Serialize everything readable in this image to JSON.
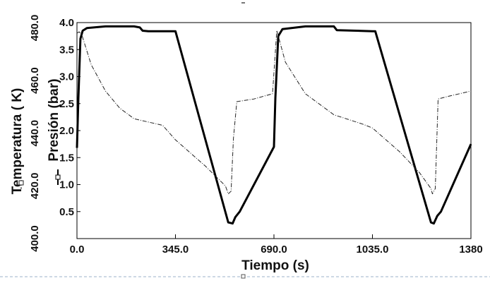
{
  "chart_data": {
    "type": "line",
    "title": "",
    "xlabel": "Tiempo (s)",
    "ylabel_left": "Temperatura ( K)",
    "ylabel_right": "Presión (bar)",
    "xlim": [
      0,
      1380
    ],
    "ylim_temperature": [
      400,
      482
    ],
    "ylim_pressure": [
      0,
      4.0
    ],
    "x_ticks": [
      "0.0",
      "345.0",
      "690.0",
      "1035.0",
      "1380"
    ],
    "x_tick_values": [
      0,
      345,
      690,
      1035,
      1380
    ],
    "temperature_ticks": [
      "400.0",
      "420.0",
      "440.0",
      "460.0",
      "480.0"
    ],
    "temperature_tick_values": [
      400,
      420,
      440,
      460,
      480
    ],
    "pressure_ticks": [
      "0.5",
      "1.0",
      "1.5",
      "2.0",
      "2.5",
      "3.0",
      "3.5",
      "4.0"
    ],
    "pressure_tick_values": [
      0.5,
      1.0,
      1.5,
      2.0,
      2.5,
      3.0,
      3.5,
      4.0
    ],
    "grid": false,
    "legend": "none",
    "series": [
      {
        "name": "Presión (bar)",
        "axis": "right",
        "style": "solid-thick",
        "color": "#000000",
        "points": [
          [
            0,
            1.68
          ],
          [
            5,
            2.6
          ],
          [
            12,
            3.7
          ],
          [
            20,
            3.85
          ],
          [
            35,
            3.9
          ],
          [
            100,
            3.93
          ],
          [
            200,
            3.93
          ],
          [
            220,
            3.91
          ],
          [
            230,
            3.85
          ],
          [
            250,
            3.84
          ],
          [
            300,
            3.84
          ],
          [
            345,
            3.84
          ],
          [
            530,
            0.3
          ],
          [
            545,
            0.28
          ],
          [
            555,
            0.4
          ],
          [
            570,
            0.5
          ],
          [
            690,
            1.7
          ],
          [
            695,
            2.6
          ],
          [
            705,
            3.75
          ],
          [
            720,
            3.88
          ],
          [
            800,
            3.93
          ],
          [
            900,
            3.93
          ],
          [
            910,
            3.86
          ],
          [
            1035,
            3.84
          ],
          [
            1045,
            3.84
          ],
          [
            1240,
            0.3
          ],
          [
            1250,
            0.28
          ],
          [
            1262,
            0.42
          ],
          [
            1275,
            0.5
          ],
          [
            1380,
            1.75
          ]
        ]
      },
      {
        "name": "Temperatura ( K)",
        "axis": "left",
        "style": "dash-dot-thin",
        "color": "#222222",
        "points": [
          [
            0,
            478
          ],
          [
            8,
            478.5
          ],
          [
            18,
            477
          ],
          [
            50,
            466
          ],
          [
            100,
            456
          ],
          [
            150,
            449.5
          ],
          [
            200,
            445.5
          ],
          [
            260,
            444
          ],
          [
            300,
            443
          ],
          [
            345,
            437.5
          ],
          [
            450,
            427.5
          ],
          [
            520,
            420
          ],
          [
            530,
            417
          ],
          [
            540,
            418
          ],
          [
            548,
            438
          ],
          [
            560,
            452
          ],
          [
            620,
            453
          ],
          [
            685,
            455
          ],
          [
            700,
            479
          ],
          [
            730,
            467
          ],
          [
            800,
            455
          ],
          [
            900,
            447
          ],
          [
            1000,
            443.5
          ],
          [
            1035,
            442
          ],
          [
            1130,
            433
          ],
          [
            1200,
            425
          ],
          [
            1240,
            419
          ],
          [
            1245,
            417
          ],
          [
            1255,
            419
          ],
          [
            1265,
            453
          ],
          [
            1300,
            454
          ],
          [
            1340,
            455
          ],
          [
            1380,
            456
          ]
        ]
      }
    ]
  }
}
